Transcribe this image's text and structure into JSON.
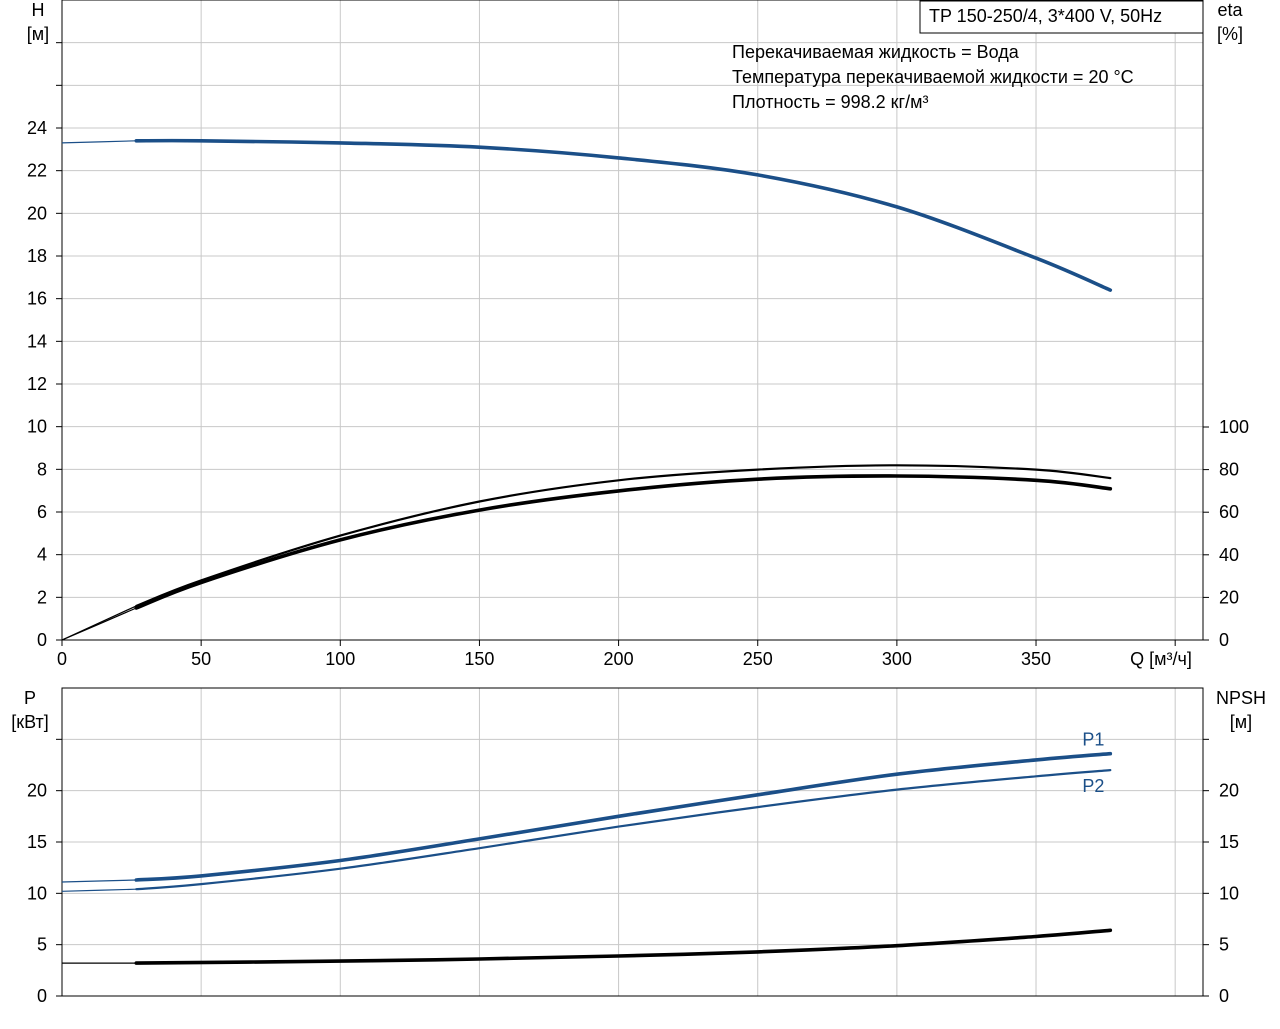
{
  "title_box": "TP 150-250/4, 3*400 V, 50Hz",
  "info_lines": [
    "Перекачиваемая жидкость = Вода",
    "Температура перекачиваемой жидкости = 20 °C",
    "Плотность = 998.2 кг/м³"
  ],
  "colors": {
    "blue": "#1b4f88",
    "black": "#000000",
    "grid": "#c8c8c8"
  },
  "chart_data": [
    {
      "type": "line",
      "name": "head-efficiency",
      "xlabel": "Q [м³/ч]",
      "ylabel_left": [
        "H",
        "[м]"
      ],
      "ylabel_right": [
        "eta",
        "[%]"
      ],
      "xlim": [
        0,
        410
      ],
      "ylim_left": [
        0,
        30
      ],
      "ylim_right": [
        0,
        100
      ],
      "x_ticks": [
        0,
        50,
        100,
        150,
        200,
        250,
        300,
        350
      ],
      "y_ticks_left": [
        0,
        2,
        4,
        6,
        8,
        10,
        12,
        14,
        16,
        18,
        20,
        22,
        24
      ],
      "y_ticks_right": [
        0,
        20,
        40,
        60,
        80,
        100
      ],
      "grid": true,
      "series": [
        {
          "axis": "left",
          "color": "blue",
          "weight": "thick",
          "points": [
            [
              0,
              23.3
            ],
            [
              26.7,
              23.4
            ],
            [
              50,
              23.4
            ],
            [
              100,
              23.3
            ],
            [
              150,
              23.1
            ],
            [
              200,
              22.6
            ],
            [
              250,
              21.8
            ],
            [
              300,
              20.3
            ],
            [
              350,
              17.9
            ],
            [
              376.7,
              16.4
            ]
          ],
          "extension_to": 0
        },
        {
          "axis": "right",
          "color": "black",
          "weight": "thin",
          "points": [
            [
              0,
              0
            ],
            [
              26.7,
              16
            ],
            [
              50,
              28
            ],
            [
              100,
              49
            ],
            [
              150,
              65
            ],
            [
              200,
              75
            ],
            [
              250,
              80
            ],
            [
              300,
              82
            ],
            [
              350,
              80
            ],
            [
              376.7,
              76
            ]
          ]
        },
        {
          "axis": "right",
          "color": "black",
          "weight": "thick",
          "points": [
            [
              0,
              0
            ],
            [
              26.7,
              15
            ],
            [
              50,
              27
            ],
            [
              100,
              47
            ],
            [
              150,
              61
            ],
            [
              200,
              70
            ],
            [
              250,
              75.5
            ],
            [
              300,
              77
            ],
            [
              350,
              75
            ],
            [
              376.7,
              71
            ]
          ]
        }
      ]
    },
    {
      "type": "line",
      "name": "power-npsh",
      "ylabel_left": [
        "P",
        "[кВт]"
      ],
      "ylabel_right": [
        "NPSH",
        "[м]"
      ],
      "xlim": [
        0,
        410
      ],
      "ylim": [
        0,
        30
      ],
      "y_ticks": [
        0,
        5,
        10,
        15,
        20
      ],
      "grid": true,
      "series": [
        {
          "name": "P1",
          "color": "blue",
          "weight": "thick",
          "points": [
            [
              0,
              11.1
            ],
            [
              26.7,
              11.3
            ],
            [
              50,
              11.7
            ],
            [
              100,
              13.2
            ],
            [
              150,
              15.3
            ],
            [
              200,
              17.5
            ],
            [
              250,
              19.6
            ],
            [
              300,
              21.6
            ],
            [
              350,
              23.0
            ],
            [
              376.7,
              23.6
            ]
          ]
        },
        {
          "name": "P2",
          "color": "blue",
          "weight": "thin",
          "points": [
            [
              0,
              10.2
            ],
            [
              26.7,
              10.4
            ],
            [
              50,
              10.9
            ],
            [
              100,
              12.4
            ],
            [
              150,
              14.4
            ],
            [
              200,
              16.5
            ],
            [
              250,
              18.4
            ],
            [
              300,
              20.1
            ],
            [
              350,
              21.4
            ],
            [
              376.7,
              22.0
            ]
          ]
        },
        {
          "color": "black",
          "weight": "thick",
          "points": [
            [
              0,
              3.2
            ],
            [
              26.7,
              3.2
            ],
            [
              100,
              3.4
            ],
            [
              150,
              3.6
            ],
            [
              200,
              3.9
            ],
            [
              250,
              4.3
            ],
            [
              300,
              4.9
            ],
            [
              350,
              5.8
            ],
            [
              376.7,
              6.4
            ]
          ]
        }
      ]
    }
  ]
}
